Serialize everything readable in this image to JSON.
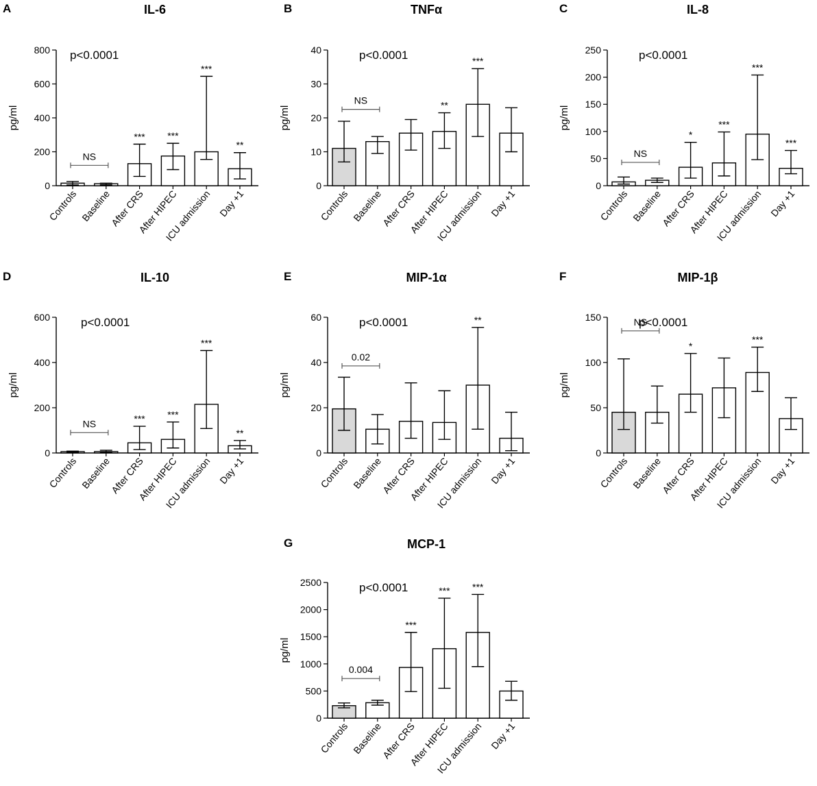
{
  "figure": {
    "categories": [
      "Controls",
      "Baseline",
      "After CRS",
      "After HIPEC",
      "ICU admission",
      "Day +1"
    ],
    "ylabel": "pg/ml",
    "colors": {
      "controls_fill": "#d9d9d9",
      "bar_fill": "#ffffff",
      "stroke": "#000000",
      "bracket": "#555555"
    }
  },
  "chart_data": [
    {
      "type": "bar",
      "id": "A",
      "letter": "A",
      "title": "IL-6",
      "pvalue": "p<0.0001",
      "ylabel": "pg/ml",
      "ylim": [
        0,
        800
      ],
      "ticks": [
        "0",
        "200",
        "400",
        "600",
        "800"
      ],
      "categories": [
        "Controls",
        "Baseline",
        "After CRS",
        "After HIPEC",
        "ICU admission",
        "Day +1"
      ],
      "values": [
        15,
        12,
        130,
        175,
        200,
        100
      ],
      "err_low": [
        5,
        5,
        55,
        95,
        155,
        40
      ],
      "err_high": [
        25,
        15,
        245,
        250,
        645,
        195
      ],
      "controls_shaded": false,
      "significance": [
        "",
        "",
        "***",
        "***",
        "***",
        "**"
      ],
      "comparison": {
        "label": "NS",
        "from": 0,
        "to": 1,
        "y": 120
      }
    },
    {
      "type": "bar",
      "id": "B",
      "letter": "B",
      "title": "TNFα",
      "pvalue": "p<0.0001",
      "ylabel": "pg/ml",
      "ylim": [
        0,
        40
      ],
      "ticks": [
        "0",
        "10",
        "20",
        "30",
        "40"
      ],
      "categories": [
        "Controls",
        "Baseline",
        "After CRS",
        "After HIPEC",
        "ICU admission",
        "Day +1"
      ],
      "values": [
        11,
        13,
        15.5,
        16,
        24,
        15.5
      ],
      "err_low": [
        7,
        9.5,
        10.5,
        11,
        14.5,
        10
      ],
      "err_high": [
        19,
        14.5,
        19.5,
        21.5,
        34.5,
        23
      ],
      "controls_shaded": true,
      "significance": [
        "",
        "",
        "",
        "**",
        "***",
        ""
      ],
      "comparison": {
        "label": "NS",
        "from": 0,
        "to": 1,
        "y": 22.5
      }
    },
    {
      "type": "bar",
      "id": "C",
      "letter": "C",
      "title": "IL-8",
      "pvalue": "p<0.0001",
      "ylabel": "pg/ml",
      "ylim": [
        0,
        250
      ],
      "ticks": [
        "0",
        "50",
        "100",
        "150",
        "200",
        "250"
      ],
      "categories": [
        "Controls",
        "Baseline",
        "After CRS",
        "After HIPEC",
        "ICU admission",
        "Day +1"
      ],
      "values": [
        7,
        10,
        34,
        42,
        95,
        32
      ],
      "err_low": [
        3,
        6,
        14,
        18,
        48,
        22
      ],
      "err_high": [
        16,
        14,
        80,
        99,
        204,
        65
      ],
      "controls_shaded": false,
      "significance": [
        "",
        "",
        "*",
        "***",
        "***",
        "***"
      ],
      "comparison": {
        "label": "NS",
        "from": 0,
        "to": 1,
        "y": 43
      }
    },
    {
      "type": "bar",
      "id": "D",
      "letter": "D",
      "title": "IL-10",
      "pvalue": "p<0.0001",
      "ylabel": "pg/ml",
      "ylim": [
        0,
        600
      ],
      "ticks": [
        "0",
        "200",
        "400",
        "600"
      ],
      "categories": [
        "Controls",
        "Baseline",
        "After CRS",
        "After HIPEC",
        "ICU admission",
        "Day +1"
      ],
      "values": [
        6,
        6,
        45,
        60,
        215,
        32
      ],
      "err_low": [
        3,
        3,
        15,
        22,
        108,
        18
      ],
      "err_high": [
        8,
        12,
        118,
        137,
        453,
        55
      ],
      "controls_shaded": false,
      "significance": [
        "",
        "",
        "***",
        "***",
        "***",
        "**"
      ],
      "comparison": {
        "label": "NS",
        "from": 0,
        "to": 1,
        "y": 90
      }
    },
    {
      "type": "bar",
      "id": "E",
      "letter": "E",
      "title": "MIP-1α",
      "pvalue": "p<0.0001",
      "ylabel": "pg/ml",
      "ylim": [
        0,
        60
      ],
      "ticks": [
        "0",
        "20",
        "40",
        "60"
      ],
      "categories": [
        "Controls",
        "Baseline",
        "After CRS",
        "After HIPEC",
        "ICU admission",
        "Day +1"
      ],
      "values": [
        19.5,
        10.5,
        14,
        13.5,
        30,
        6.5
      ],
      "err_low": [
        10,
        4,
        6.5,
        6,
        10.5,
        1
      ],
      "err_high": [
        33.5,
        17,
        31,
        27.5,
        55.5,
        18
      ],
      "controls_shaded": true,
      "significance": [
        "",
        "",
        "",
        "",
        "**",
        ""
      ],
      "comparison": {
        "label": "0.02",
        "from": 0,
        "to": 1,
        "y": 38.5
      }
    },
    {
      "type": "bar",
      "id": "F",
      "letter": "F",
      "title": "MIP-1β",
      "pvalue": "p<0.0001",
      "ylabel": "pg/ml",
      "ylim": [
        0,
        150
      ],
      "ticks": [
        "0",
        "50",
        "100",
        "150"
      ],
      "categories": [
        "Controls",
        "Baseline",
        "After CRS",
        "After HIPEC",
        "ICU admission",
        "Day +1"
      ],
      "values": [
        45,
        45,
        65,
        72,
        89,
        38
      ],
      "err_low": [
        26,
        33,
        45,
        39,
        68,
        26
      ],
      "err_high": [
        104,
        74,
        110,
        105,
        117,
        61
      ],
      "controls_shaded": true,
      "significance": [
        "",
        "",
        "*",
        "",
        "***",
        ""
      ],
      "comparison": {
        "label": "NS",
        "from": 0,
        "to": 1,
        "y": 135
      }
    },
    {
      "type": "bar",
      "id": "G",
      "letter": "G",
      "title": "MCP-1",
      "pvalue": "p<0.0001",
      "ylabel": "pg/ml",
      "ylim": [
        0,
        2500
      ],
      "ticks": [
        "0",
        "500",
        "1000",
        "1500",
        "2000",
        "2500"
      ],
      "categories": [
        "Controls",
        "Baseline",
        "After CRS",
        "After HIPEC",
        "ICU admission",
        "Day +1"
      ],
      "values": [
        230,
        285,
        935,
        1280,
        1580,
        500
      ],
      "err_low": [
        190,
        240,
        490,
        550,
        950,
        330
      ],
      "err_high": [
        280,
        330,
        1580,
        2210,
        2280,
        680
      ],
      "controls_shaded": true,
      "significance": [
        "",
        "",
        "***",
        "***",
        "***",
        ""
      ],
      "comparison": {
        "label": "0.004",
        "from": 0,
        "to": 1,
        "y": 730
      }
    }
  ]
}
